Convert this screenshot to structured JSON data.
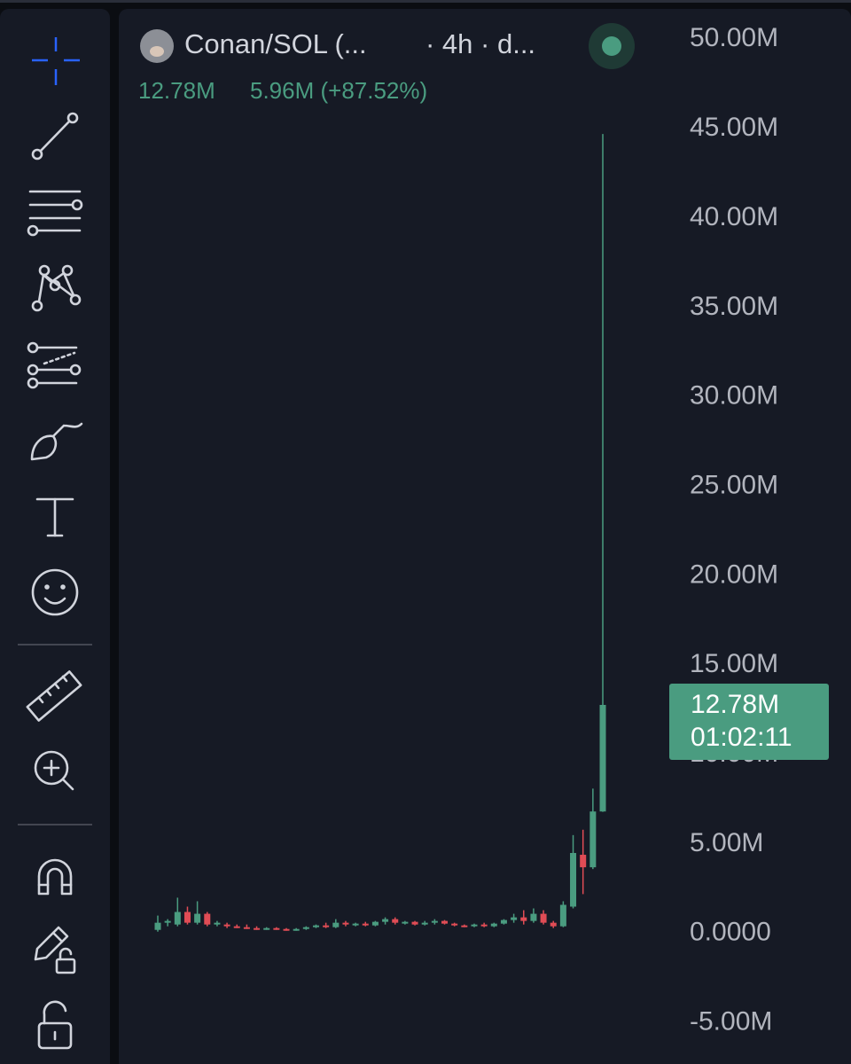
{
  "chart_data": {
    "type": "candlestick",
    "title": "Conan/SOL (...",
    "subtitle": "· 4h · d...",
    "last_label": "12.78M",
    "change_label": "5.96M (+87.52%)",
    "countdown": "01:02:11",
    "last_value": 12.78,
    "up_color": "#4a9c80",
    "down_color": "#e04c55",
    "open": [
      0.2,
      0.6,
      0.5,
      1.2,
      0.6,
      1.1,
      0.5,
      0.5,
      0.4,
      0.35,
      0.3,
      0.25,
      0.3,
      0.25,
      0.2,
      0.25,
      0.35,
      0.45,
      0.35,
      0.6,
      0.5,
      0.55,
      0.45,
      0.65,
      0.8,
      0.6,
      0.65,
      0.5,
      0.6,
      0.7,
      0.55,
      0.45,
      0.4,
      0.5,
      0.4,
      0.55,
      0.75,
      0.9,
      0.7,
      1.1,
      0.6,
      0.4,
      1.5,
      4.4,
      3.7,
      6.82
    ],
    "high": [
      1.0,
      0.8,
      2.0,
      1.5,
      1.8,
      1.2,
      0.7,
      0.6,
      0.5,
      0.5,
      0.4,
      0.35,
      0.35,
      0.3,
      0.3,
      0.4,
      0.5,
      0.6,
      0.8,
      0.7,
      0.6,
      0.65,
      0.7,
      0.9,
      0.9,
      0.7,
      0.7,
      0.7,
      0.8,
      0.75,
      0.6,
      0.5,
      0.55,
      0.6,
      0.6,
      0.8,
      1.1,
      1.3,
      1.4,
      1.3,
      0.7,
      1.8,
      5.5,
      5.8,
      8.1,
      44.7
    ],
    "low": [
      0.1,
      0.4,
      0.4,
      0.5,
      0.5,
      0.4,
      0.4,
      0.3,
      0.3,
      0.25,
      0.2,
      0.2,
      0.2,
      0.15,
      0.15,
      0.2,
      0.3,
      0.3,
      0.3,
      0.4,
      0.4,
      0.4,
      0.4,
      0.5,
      0.5,
      0.5,
      0.45,
      0.45,
      0.5,
      0.5,
      0.4,
      0.35,
      0.35,
      0.35,
      0.35,
      0.5,
      0.6,
      0.5,
      0.6,
      0.5,
      0.3,
      0.35,
      1.4,
      2.2,
      3.6,
      6.8
    ],
    "close": [
      0.6,
      0.7,
      1.2,
      0.6,
      1.1,
      0.5,
      0.6,
      0.4,
      0.35,
      0.3,
      0.25,
      0.3,
      0.25,
      0.2,
      0.25,
      0.35,
      0.45,
      0.35,
      0.6,
      0.5,
      0.55,
      0.45,
      0.65,
      0.8,
      0.6,
      0.65,
      0.5,
      0.6,
      0.7,
      0.55,
      0.45,
      0.4,
      0.5,
      0.4,
      0.55,
      0.75,
      0.9,
      0.7,
      1.1,
      0.6,
      0.4,
      1.6,
      4.5,
      3.7,
      6.82,
      12.78
    ],
    "ylim": [
      -7.3,
      51.7
    ],
    "yticks": [
      {
        "value": 50,
        "label": "50.00M"
      },
      {
        "value": 45,
        "label": "45.00M"
      },
      {
        "value": 40,
        "label": "40.00M"
      },
      {
        "value": 35,
        "label": "35.00M"
      },
      {
        "value": 30,
        "label": "30.00M"
      },
      {
        "value": 25,
        "label": "25.00M"
      },
      {
        "value": 20,
        "label": "20.00M"
      },
      {
        "value": 15,
        "label": "15.00M"
      },
      {
        "value": 10,
        "label": "10.00M"
      },
      {
        "value": 5,
        "label": "5.00M"
      },
      {
        "value": 0,
        "label": "0.0000"
      },
      {
        "value": -5,
        "label": "-5.00M"
      }
    ]
  }
}
